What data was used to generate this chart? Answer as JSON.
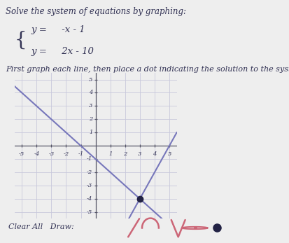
{
  "title": "Solve the system of equations by graphing:",
  "eq1_lhs": "y =",
  "eq1_rhs": " -x - 1",
  "eq2_lhs": "y =",
  "eq2_rhs": " 2x - 10",
  "instruction": "First graph each line, then place a dot indicating the solution to the system.",
  "xlim": [
    -5.5,
    5.5
  ],
  "ylim": [
    -5.5,
    5.5
  ],
  "xticks": [
    -5,
    -4,
    -3,
    -2,
    -1,
    1,
    2,
    3,
    4,
    5
  ],
  "yticks": [
    -5,
    -4,
    -3,
    -2,
    -1,
    1,
    2,
    3,
    4,
    5
  ],
  "line1_color": "#7777bb",
  "line2_color": "#7777bb",
  "solution_x": 3,
  "solution_y": -4,
  "dot_color": "#222244",
  "grid_color": "#c8c8dc",
  "axis_color": "#555566",
  "background_color": "#eeeeee",
  "text_color": "#333355",
  "icon_color": "#cc6677",
  "footer_text": "Clear All   Draw:",
  "line_width": 1.5,
  "font_size_title": 8.5,
  "font_size_eq": 9.5,
  "font_size_instr": 8.0,
  "font_size_ticks": 6.0
}
